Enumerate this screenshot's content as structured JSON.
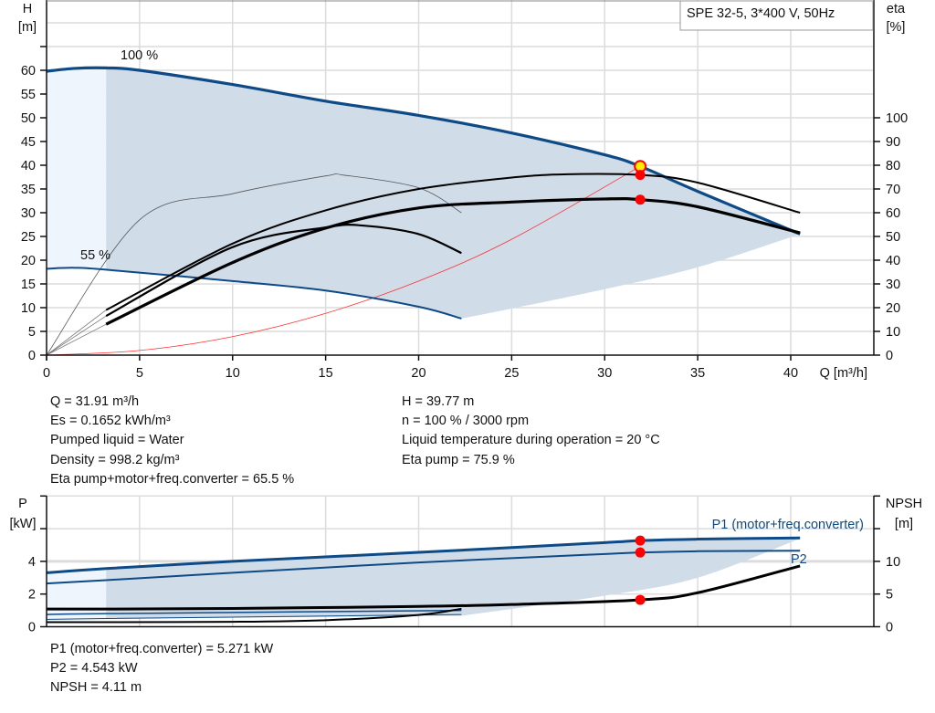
{
  "title_box": "SPE 32-5, 3*400 V, 50Hz",
  "colors": {
    "curve_blue": "#0d4a86",
    "shade": "#d0dce8",
    "shade_light": "#eef5fd",
    "grid": "#dcdcdc",
    "operating_point": "#ff0000",
    "system_curve": "#ff3030",
    "highlight": "#ffee00"
  },
  "chart_data": [
    {
      "type": "line",
      "id": "head-efficiency",
      "xlabel": "Q [m³/h]",
      "ylabel_left": [
        "H",
        "[m]"
      ],
      "ylabel_right": [
        "eta",
        "[%]"
      ],
      "xlim": [
        0,
        44.5
      ],
      "ylim_left": [
        0,
        75
      ],
      "ylim_right": [
        0,
        150
      ],
      "x_ticks": [
        "0",
        "5",
        "10",
        "15",
        "20",
        "25",
        "30",
        "35",
        "40"
      ],
      "y_ticks_left": [
        "0",
        "5",
        "10",
        "15",
        "20",
        "25",
        "30",
        "35",
        "40",
        "45",
        "50",
        "55",
        "60"
      ],
      "y_ticks_right": [
        "0",
        "10",
        "20",
        "30",
        "40",
        "50",
        "60",
        "70",
        "80",
        "90",
        "100"
      ],
      "grid": true,
      "annotations": {
        "speed_max": "100 %",
        "speed_min": "55 %"
      },
      "series": [
        {
          "role": "head-100",
          "axis": "left",
          "points": [
            [
              0,
              59.8
            ],
            [
              1.5,
              60.4
            ],
            [
              3.2,
              60.5
            ],
            [
              5,
              60
            ],
            [
              10,
              57
            ],
            [
              15,
              53.5
            ],
            [
              20,
              50.5
            ],
            [
              25,
              46.8
            ],
            [
              30,
              42.2
            ],
            [
              31.91,
              39.77
            ],
            [
              35,
              34.5
            ],
            [
              40.5,
              25.5
            ]
          ]
        },
        {
          "role": "head-55",
          "axis": "left",
          "points": [
            [
              0,
              18.2
            ],
            [
              1.5,
              18.4
            ],
            [
              3.2,
              18
            ],
            [
              10,
              15.6
            ],
            [
              15,
              13.6
            ],
            [
              20,
              10.2
            ],
            [
              22.3,
              7.7
            ]
          ]
        },
        {
          "role": "operating-range-lower",
          "axis": "left",
          "points": [
            [
              22.3,
              7.7
            ],
            [
              25,
              9.8
            ],
            [
              30,
              13.9
            ],
            [
              35,
              18.5
            ],
            [
              40.5,
              25.5
            ]
          ]
        },
        {
          "role": "system-curve",
          "axis": "left",
          "points": [
            [
              0,
              0
            ],
            [
              5,
              0.98
            ],
            [
              10,
              3.9
            ],
            [
              15,
              8.8
            ],
            [
              20,
              15.6
            ],
            [
              25,
              24.4
            ],
            [
              31.91,
              39.77
            ]
          ]
        },
        {
          "role": "eta-pump-100",
          "axis": "right",
          "points": [
            [
              3.2,
              19
            ],
            [
              10,
              47
            ],
            [
              15,
              61
            ],
            [
              20,
              70
            ],
            [
              25,
              74.8
            ],
            [
              28,
              76.2
            ],
            [
              31.91,
              75.9
            ],
            [
              35,
              72.7
            ],
            [
              40.5,
              60
            ]
          ]
        },
        {
          "role": "eta-total-100",
          "axis": "right",
          "points": [
            [
              3.2,
              13
            ],
            [
              10,
              39
            ],
            [
              15,
              53.5
            ],
            [
              20,
              62
            ],
            [
              25,
              64.5
            ],
            [
              30,
              65.8
            ],
            [
              31.91,
              65.5
            ],
            [
              35,
              62.5
            ],
            [
              40.5,
              51.5
            ]
          ]
        },
        {
          "role": "eta-pump-55",
          "axis": "right",
          "points": [
            [
              3.2,
              16.5
            ],
            [
              10,
              45.5
            ],
            [
              15,
              53.8
            ],
            [
              17,
              54.6
            ],
            [
              20,
              51
            ],
            [
              22.3,
              43
            ]
          ]
        },
        {
          "role": "eta-pump-ext",
          "axis": "right",
          "points": [
            [
              0,
              0
            ],
            [
              5,
              57
            ],
            [
              10,
              68
            ],
            [
              15,
              75.5
            ],
            [
              16,
              75.8
            ],
            [
              20,
              70.5
            ],
            [
              22.3,
              60
            ]
          ]
        }
      ],
      "operating_points": [
        {
          "axis": "left",
          "q": 31.91,
          "value": 39.77,
          "style": "highlight"
        },
        {
          "axis": "right",
          "q": 31.91,
          "value": 75.9
        },
        {
          "axis": "right",
          "q": 31.91,
          "value": 65.5
        }
      ]
    },
    {
      "type": "line",
      "id": "power-npsh",
      "ylabel_left": [
        "P",
        "[kW]"
      ],
      "ylabel_right": [
        "NPSH",
        "[m]"
      ],
      "xlim": [
        0,
        44.5
      ],
      "ylim_left": [
        0,
        8
      ],
      "ylim_right": [
        0,
        20
      ],
      "y_ticks_left": [
        "0",
        "2",
        "4"
      ],
      "y_ticks_right": [
        "0",
        "5",
        "10"
      ],
      "grid": true,
      "series": [
        {
          "name": "P1 (motor+freq.converter)",
          "axis": "left",
          "points": [
            [
              0,
              3.3
            ],
            [
              3.2,
              3.56
            ],
            [
              10,
              4.0
            ],
            [
              20,
              4.55
            ],
            [
              30,
              5.15
            ],
            [
              31.91,
              5.271
            ],
            [
              35,
              5.36
            ],
            [
              40.5,
              5.43
            ]
          ]
        },
        {
          "name": "P2",
          "axis": "left",
          "points": [
            [
              0,
              2.65
            ],
            [
              3.2,
              2.85
            ],
            [
              10,
              3.3
            ],
            [
              20,
              3.93
            ],
            [
              30,
              4.45
            ],
            [
              31.91,
              4.543
            ],
            [
              35,
              4.62
            ],
            [
              40.5,
              4.65
            ]
          ]
        },
        {
          "role": "p1-55",
          "axis": "left",
          "points": [
            [
              0,
              0.75
            ],
            [
              3.2,
              0.8
            ],
            [
              22.3,
              1.0
            ]
          ]
        },
        {
          "role": "p2-55",
          "axis": "left",
          "points": [
            [
              0,
              0.45
            ],
            [
              3.2,
              0.5
            ],
            [
              22.3,
              0.75
            ]
          ]
        },
        {
          "role": "range-lower",
          "axis": "left",
          "points": [
            [
              22.3,
              0.67
            ],
            [
              30,
              1.9
            ],
            [
              35,
              3.0
            ],
            [
              40.5,
              5.4
            ]
          ]
        },
        {
          "role": "npsh-100",
          "axis": "right",
          "points": [
            [
              0,
              2.7
            ],
            [
              3.2,
              2.7
            ],
            [
              10,
              2.8
            ],
            [
              20,
              3.1
            ],
            [
              25,
              3.4
            ],
            [
              31.91,
              4.11
            ],
            [
              35,
              5.2
            ],
            [
              40.5,
              9.3
            ]
          ]
        },
        {
          "role": "npsh-55",
          "axis": "right",
          "points": [
            [
              0,
              0.7
            ],
            [
              3.2,
              0.7
            ],
            [
              10,
              0.75
            ],
            [
              15,
              1.0
            ],
            [
              20,
              1.8
            ],
            [
              22.3,
              2.75
            ]
          ]
        }
      ],
      "operating_points": [
        {
          "axis": "left",
          "q": 31.91,
          "value": 5.271
        },
        {
          "axis": "left",
          "q": 31.91,
          "value": 4.543
        },
        {
          "axis": "right",
          "q": 31.91,
          "value": 4.11
        }
      ]
    }
  ],
  "results": {
    "left": [
      "Q = 31.91 m³/h",
      "Es = 0.1652 kWh/m³",
      "Pumped liquid = Water",
      "Density = 998.2 kg/m³",
      "Eta pump+motor+freq.converter = 65.5 %"
    ],
    "right": [
      "H = 39.77 m",
      "n = 100 % / 3000 rpm",
      "Liquid temperature during operation = 20 °C",
      "Eta pump = 75.9 %"
    ],
    "bottom": [
      "P1 (motor+freq.converter) = 5.271 kW",
      "P2 = 4.543 kW",
      "NPSH = 4.11 m"
    ]
  }
}
